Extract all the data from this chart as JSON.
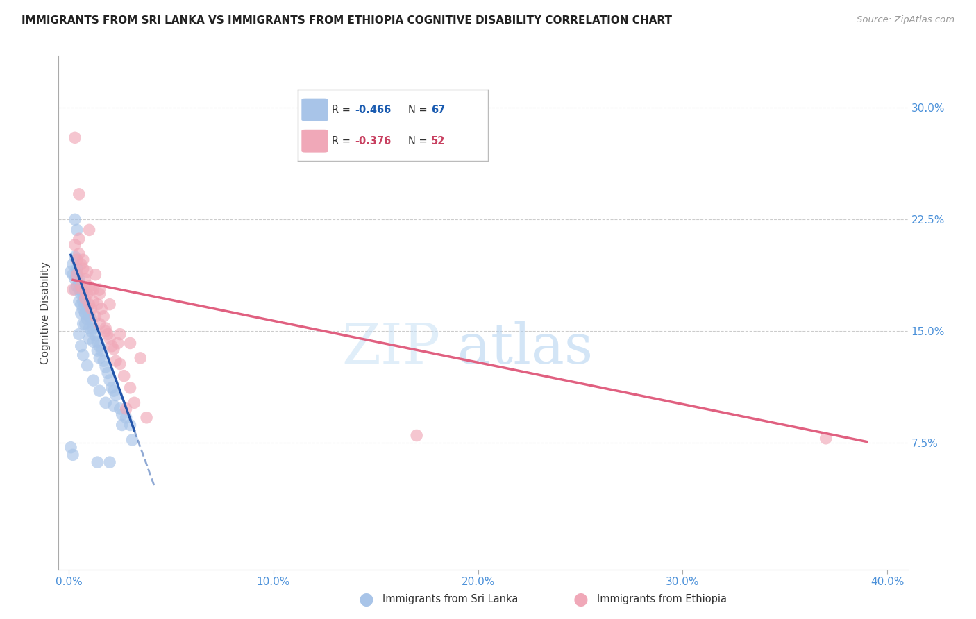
{
  "title": "IMMIGRANTS FROM SRI LANKA VS IMMIGRANTS FROM ETHIOPIA COGNITIVE DISABILITY CORRELATION CHART",
  "source": "Source: ZipAtlas.com",
  "ylabel": "Cognitive Disability",
  "right_yticks": [
    0.075,
    0.15,
    0.225,
    0.3
  ],
  "right_yticklabels": [
    "7.5%",
    "15.0%",
    "22.5%",
    "30.0%"
  ],
  "x_ticks": [
    0.0,
    0.1,
    0.2,
    0.3,
    0.4
  ],
  "x_ticklabels": [
    "0.0%",
    "10.0%",
    "20.0%",
    "30.0%",
    "40.0%"
  ],
  "sri_lanka_R": "-0.466",
  "sri_lanka_N": "67",
  "ethiopia_R": "-0.376",
  "ethiopia_N": "52",
  "sri_lanka_color": "#a8c4e8",
  "ethiopia_color": "#f0a8b8",
  "sri_lanka_line_color": "#2255aa",
  "ethiopia_line_color": "#e06080",
  "xlim": [
    -0.005,
    0.41
  ],
  "ylim": [
    -0.01,
    0.335
  ],
  "sri_lanka_x": [
    0.001,
    0.002,
    0.002,
    0.003,
    0.003,
    0.003,
    0.004,
    0.004,
    0.004,
    0.005,
    0.005,
    0.005,
    0.005,
    0.006,
    0.006,
    0.006,
    0.006,
    0.007,
    0.007,
    0.007,
    0.007,
    0.008,
    0.008,
    0.008,
    0.009,
    0.009,
    0.01,
    0.01,
    0.01,
    0.011,
    0.011,
    0.012,
    0.012,
    0.013,
    0.014,
    0.014,
    0.015,
    0.015,
    0.016,
    0.017,
    0.018,
    0.019,
    0.02,
    0.021,
    0.022,
    0.023,
    0.025,
    0.026,
    0.028,
    0.03,
    0.003,
    0.004,
    0.005,
    0.006,
    0.007,
    0.009,
    0.012,
    0.015,
    0.018,
    0.022,
    0.026,
    0.031,
    0.001,
    0.002,
    0.008,
    0.014,
    0.02
  ],
  "sri_lanka_y": [
    0.19,
    0.195,
    0.188,
    0.2,
    0.185,
    0.178,
    0.192,
    0.188,
    0.18,
    0.185,
    0.182,
    0.178,
    0.17,
    0.178,
    0.175,
    0.168,
    0.162,
    0.175,
    0.17,
    0.165,
    0.155,
    0.17,
    0.162,
    0.155,
    0.165,
    0.158,
    0.16,
    0.152,
    0.145,
    0.158,
    0.15,
    0.152,
    0.143,
    0.147,
    0.143,
    0.137,
    0.14,
    0.132,
    0.137,
    0.13,
    0.126,
    0.122,
    0.117,
    0.112,
    0.11,
    0.107,
    0.098,
    0.094,
    0.092,
    0.087,
    0.225,
    0.218,
    0.148,
    0.14,
    0.134,
    0.127,
    0.117,
    0.11,
    0.102,
    0.1,
    0.087,
    0.077,
    0.072,
    0.067,
    0.162,
    0.062,
    0.062
  ],
  "ethiopia_x": [
    0.002,
    0.003,
    0.004,
    0.004,
    0.005,
    0.005,
    0.006,
    0.006,
    0.007,
    0.007,
    0.008,
    0.008,
    0.009,
    0.009,
    0.01,
    0.01,
    0.011,
    0.011,
    0.012,
    0.012,
    0.013,
    0.014,
    0.015,
    0.015,
    0.016,
    0.017,
    0.018,
    0.019,
    0.02,
    0.021,
    0.022,
    0.023,
    0.025,
    0.027,
    0.03,
    0.005,
    0.01,
    0.015,
    0.02,
    0.025,
    0.03,
    0.035,
    0.003,
    0.007,
    0.013,
    0.018,
    0.024,
    0.032,
    0.028,
    0.038,
    0.17,
    0.37
  ],
  "ethiopia_y": [
    0.178,
    0.28,
    0.188,
    0.198,
    0.202,
    0.212,
    0.195,
    0.18,
    0.192,
    0.178,
    0.185,
    0.172,
    0.19,
    0.175,
    0.18,
    0.168,
    0.178,
    0.165,
    0.17,
    0.178,
    0.16,
    0.168,
    0.175,
    0.155,
    0.165,
    0.16,
    0.15,
    0.148,
    0.145,
    0.14,
    0.138,
    0.13,
    0.128,
    0.12,
    0.112,
    0.242,
    0.218,
    0.178,
    0.168,
    0.148,
    0.142,
    0.132,
    0.208,
    0.198,
    0.188,
    0.152,
    0.142,
    0.102,
    0.098,
    0.092,
    0.08,
    0.078
  ],
  "sl_line_x0": 0.001,
  "sl_line_x1": 0.032,
  "sl_line_x_dash_end": 0.042,
  "eth_line_x0": 0.002,
  "eth_line_x1": 0.39,
  "sl_line_slope": -3.8,
  "sl_line_intercept": 0.205,
  "eth_line_slope": -0.28,
  "eth_line_intercept": 0.185
}
